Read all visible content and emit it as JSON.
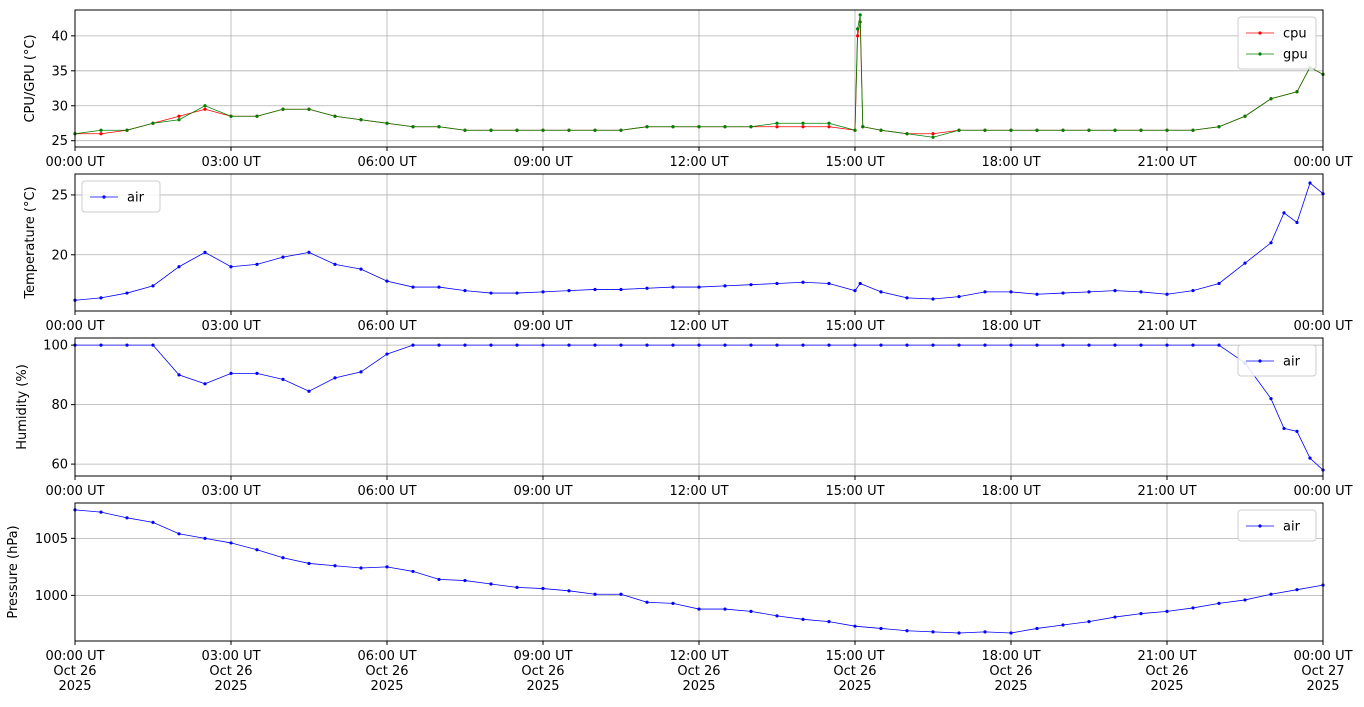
{
  "chart_data": [
    {
      "type": "line",
      "ylabel": "CPU/GPU (°C)",
      "legend": "upper right",
      "grid": true,
      "xlim": [
        "2025-10-26T00:00",
        "2025-10-27T00:00"
      ],
      "ylim": [
        24.1,
        43.7
      ],
      "yticks": [
        25,
        30,
        35,
        40
      ],
      "xticks": [
        {
          "value": "2025-10-26T00:00",
          "label": "00:00 UT"
        },
        {
          "value": "2025-10-26T03:00",
          "label": "03:00 UT"
        },
        {
          "value": "2025-10-26T06:00",
          "label": "06:00 UT"
        },
        {
          "value": "2025-10-26T09:00",
          "label": "09:00 UT"
        },
        {
          "value": "2025-10-26T12:00",
          "label": "12:00 UT"
        },
        {
          "value": "2025-10-26T15:00",
          "label": "15:00 UT"
        },
        {
          "value": "2025-10-26T18:00",
          "label": "18:00 UT"
        },
        {
          "value": "2025-10-26T21:00",
          "label": "21:00 UT"
        },
        {
          "value": "2025-10-27T00:00",
          "label": "00:00 UT"
        }
      ],
      "x": [
        "2025-10-26T00:00",
        "2025-10-26T00:30",
        "2025-10-26T01:00",
        "2025-10-26T01:30",
        "2025-10-26T02:00",
        "2025-10-26T02:30",
        "2025-10-26T03:00",
        "2025-10-26T03:30",
        "2025-10-26T04:00",
        "2025-10-26T04:30",
        "2025-10-26T05:00",
        "2025-10-26T05:30",
        "2025-10-26T06:00",
        "2025-10-26T06:30",
        "2025-10-26T07:00",
        "2025-10-26T07:30",
        "2025-10-26T08:00",
        "2025-10-26T08:30",
        "2025-10-26T09:00",
        "2025-10-26T09:30",
        "2025-10-26T10:00",
        "2025-10-26T10:30",
        "2025-10-26T11:00",
        "2025-10-26T11:30",
        "2025-10-26T12:00",
        "2025-10-26T12:30",
        "2025-10-26T13:00",
        "2025-10-26T13:30",
        "2025-10-26T14:00",
        "2025-10-26T14:30",
        "2025-10-26T15:00",
        "2025-10-26T15:03",
        "2025-10-26T15:06",
        "2025-10-26T15:09",
        "2025-10-26T15:30",
        "2025-10-26T16:00",
        "2025-10-26T16:30",
        "2025-10-26T17:00",
        "2025-10-26T17:30",
        "2025-10-26T18:00",
        "2025-10-26T18:30",
        "2025-10-26T19:00",
        "2025-10-26T19:30",
        "2025-10-26T20:00",
        "2025-10-26T20:30",
        "2025-10-26T21:00",
        "2025-10-26T21:30",
        "2025-10-26T22:00",
        "2025-10-26T22:30",
        "2025-10-26T23:00",
        "2025-10-26T23:30",
        "2025-10-26T23:45",
        "2025-10-27T00:00"
      ],
      "series": [
        {
          "name": "cpu",
          "color": "#ff0000",
          "values": [
            26,
            26,
            26.5,
            27.5,
            28.5,
            29.5,
            28.5,
            28.5,
            29.5,
            29.5,
            28.5,
            28,
            27.5,
            27,
            27,
            26.5,
            26.5,
            26.5,
            26.5,
            26.5,
            26.5,
            26.5,
            27,
            27,
            27,
            27,
            27,
            27,
            27,
            27,
            26.5,
            40,
            42,
            27,
            26.5,
            26,
            26,
            26.5,
            26.5,
            26.5,
            26.5,
            26.5,
            26.5,
            26.5,
            26.5,
            26.5,
            26.5,
            27,
            28.5,
            31,
            32,
            35.5,
            34.5
          ]
        },
        {
          "name": "gpu",
          "color": "#008000",
          "values": [
            26,
            26.5,
            26.5,
            27.5,
            28,
            30,
            28.5,
            28.5,
            29.5,
            29.5,
            28.5,
            28,
            27.5,
            27,
            27,
            26.5,
            26.5,
            26.5,
            26.5,
            26.5,
            26.5,
            26.5,
            27,
            27,
            27,
            27,
            27,
            27.5,
            27.5,
            27.5,
            26.5,
            41,
            43,
            27,
            26.5,
            26,
            25.5,
            26.5,
            26.5,
            26.5,
            26.5,
            26.5,
            26.5,
            26.5,
            26.5,
            26.5,
            26.5,
            27,
            28.5,
            31,
            32,
            35.5,
            34.5
          ]
        }
      ]
    },
    {
      "type": "line",
      "ylabel": "Temperature (°C)",
      "legend": "upper left",
      "grid": true,
      "xlim": [
        "2025-10-26T00:00",
        "2025-10-27T00:00"
      ],
      "ylim": [
        15.3,
        26.75
      ],
      "yticks": [
        20,
        25
      ],
      "xticks": [
        {
          "value": "2025-10-26T00:00",
          "label": "00:00 UT"
        },
        {
          "value": "2025-10-26T03:00",
          "label": "03:00 UT"
        },
        {
          "value": "2025-10-26T06:00",
          "label": "06:00 UT"
        },
        {
          "value": "2025-10-26T09:00",
          "label": "09:00 UT"
        },
        {
          "value": "2025-10-26T12:00",
          "label": "12:00 UT"
        },
        {
          "value": "2025-10-26T15:00",
          "label": "15:00 UT"
        },
        {
          "value": "2025-10-26T18:00",
          "label": "18:00 UT"
        },
        {
          "value": "2025-10-26T21:00",
          "label": "21:00 UT"
        },
        {
          "value": "2025-10-27T00:00",
          "label": "00:00 UT"
        }
      ],
      "x": [
        "2025-10-26T00:00",
        "2025-10-26T00:30",
        "2025-10-26T01:00",
        "2025-10-26T01:30",
        "2025-10-26T02:00",
        "2025-10-26T02:30",
        "2025-10-26T03:00",
        "2025-10-26T03:30",
        "2025-10-26T04:00",
        "2025-10-26T04:30",
        "2025-10-26T05:00",
        "2025-10-26T05:30",
        "2025-10-26T06:00",
        "2025-10-26T06:30",
        "2025-10-26T07:00",
        "2025-10-26T07:30",
        "2025-10-26T08:00",
        "2025-10-26T08:30",
        "2025-10-26T09:00",
        "2025-10-26T09:30",
        "2025-10-26T10:00",
        "2025-10-26T10:30",
        "2025-10-26T11:00",
        "2025-10-26T11:30",
        "2025-10-26T12:00",
        "2025-10-26T12:30",
        "2025-10-26T13:00",
        "2025-10-26T13:30",
        "2025-10-26T14:00",
        "2025-10-26T14:30",
        "2025-10-26T15:00",
        "2025-10-26T15:06",
        "2025-10-26T15:30",
        "2025-10-26T16:00",
        "2025-10-26T16:30",
        "2025-10-26T17:00",
        "2025-10-26T17:30",
        "2025-10-26T18:00",
        "2025-10-26T18:30",
        "2025-10-26T19:00",
        "2025-10-26T19:30",
        "2025-10-26T20:00",
        "2025-10-26T20:30",
        "2025-10-26T21:00",
        "2025-10-26T21:30",
        "2025-10-26T22:00",
        "2025-10-26T22:30",
        "2025-10-26T23:00",
        "2025-10-26T23:15",
        "2025-10-26T23:30",
        "2025-10-26T23:45",
        "2025-10-27T00:00"
      ],
      "series": [
        {
          "name": "air",
          "color": "#0000ff",
          "values": [
            16.2,
            16.4,
            16.8,
            17.4,
            19,
            20.2,
            19,
            19.2,
            19.8,
            20.2,
            19.2,
            18.8,
            17.8,
            17.3,
            17.3,
            17.0,
            16.8,
            16.8,
            16.9,
            17.0,
            17.1,
            17.1,
            17.2,
            17.3,
            17.3,
            17.4,
            17.5,
            17.6,
            17.7,
            17.6,
            17.0,
            17.6,
            16.9,
            16.4,
            16.3,
            16.5,
            16.9,
            16.9,
            16.7,
            16.8,
            16.9,
            17.0,
            16.9,
            16.7,
            17.0,
            17.6,
            19.3,
            21.0,
            23.5,
            22.7,
            26,
            25.1
          ]
        }
      ]
    },
    {
      "type": "line",
      "ylabel": "Humidity (%)",
      "legend": "upper right",
      "grid": true,
      "xlim": [
        "2025-10-26T00:00",
        "2025-10-27T00:00"
      ],
      "ylim": [
        56,
        102.4
      ],
      "yticks": [
        60,
        80,
        100
      ],
      "xticks": [
        {
          "value": "2025-10-26T00:00",
          "label": "00:00 UT"
        },
        {
          "value": "2025-10-26T03:00",
          "label": "03:00 UT"
        },
        {
          "value": "2025-10-26T06:00",
          "label": "06:00 UT"
        },
        {
          "value": "2025-10-26T09:00",
          "label": "09:00 UT"
        },
        {
          "value": "2025-10-26T12:00",
          "label": "12:00 UT"
        },
        {
          "value": "2025-10-26T15:00",
          "label": "15:00 UT"
        },
        {
          "value": "2025-10-26T18:00",
          "label": "18:00 UT"
        },
        {
          "value": "2025-10-26T21:00",
          "label": "21:00 UT"
        },
        {
          "value": "2025-10-27T00:00",
          "label": "00:00 UT"
        }
      ],
      "x": [
        "2025-10-26T00:00",
        "2025-10-26T00:30",
        "2025-10-26T01:00",
        "2025-10-26T01:30",
        "2025-10-26T02:00",
        "2025-10-26T02:30",
        "2025-10-26T03:00",
        "2025-10-26T03:30",
        "2025-10-26T04:00",
        "2025-10-26T04:30",
        "2025-10-26T05:00",
        "2025-10-26T05:30",
        "2025-10-26T06:00",
        "2025-10-26T06:30",
        "2025-10-26T07:00",
        "2025-10-26T07:30",
        "2025-10-26T08:00",
        "2025-10-26T08:30",
        "2025-10-26T09:00",
        "2025-10-26T09:30",
        "2025-10-26T10:00",
        "2025-10-26T10:30",
        "2025-10-26T11:00",
        "2025-10-26T11:30",
        "2025-10-26T12:00",
        "2025-10-26T12:30",
        "2025-10-26T13:00",
        "2025-10-26T13:30",
        "2025-10-26T14:00",
        "2025-10-26T14:30",
        "2025-10-26T15:00",
        "2025-10-26T15:30",
        "2025-10-26T16:00",
        "2025-10-26T16:30",
        "2025-10-26T17:00",
        "2025-10-26T17:30",
        "2025-10-26T18:00",
        "2025-10-26T18:30",
        "2025-10-26T19:00",
        "2025-10-26T19:30",
        "2025-10-26T20:00",
        "2025-10-26T20:30",
        "2025-10-26T21:00",
        "2025-10-26T21:30",
        "2025-10-26T22:00",
        "2025-10-26T22:30",
        "2025-10-26T23:00",
        "2025-10-26T23:15",
        "2025-10-26T23:30",
        "2025-10-26T23:45",
        "2025-10-27T00:00"
      ],
      "series": [
        {
          "name": "air",
          "color": "#0000ff",
          "values": [
            100,
            100,
            100,
            100,
            90,
            87,
            90.5,
            90.5,
            88.5,
            84.5,
            89,
            91,
            97,
            100,
            100,
            100,
            100,
            100,
            100,
            100,
            100,
            100,
            100,
            100,
            100,
            100,
            100,
            100,
            100,
            100,
            100,
            100,
            100,
            100,
            100,
            100,
            100,
            100,
            100,
            100,
            100,
            100,
            100,
            100,
            100,
            94,
            82,
            72,
            71,
            62,
            58
          ]
        }
      ]
    },
    {
      "type": "line",
      "ylabel": "Pressure (hPa)",
      "legend": "upper right",
      "grid": true,
      "xlim": [
        "2025-10-26T00:00",
        "2025-10-27T00:00"
      ],
      "ylim": [
        996,
        1008.1
      ],
      "yticks": [
        1000,
        1005
      ],
      "xticks": [
        {
          "value": "2025-10-26T00:00",
          "label": [
            "00:00 UT",
            "Oct 26",
            "2025"
          ]
        },
        {
          "value": "2025-10-26T03:00",
          "label": [
            "03:00 UT",
            "Oct 26",
            "2025"
          ]
        },
        {
          "value": "2025-10-26T06:00",
          "label": [
            "06:00 UT",
            "Oct 26",
            "2025"
          ]
        },
        {
          "value": "2025-10-26T09:00",
          "label": [
            "09:00 UT",
            "Oct 26",
            "2025"
          ]
        },
        {
          "value": "2025-10-26T12:00",
          "label": [
            "12:00 UT",
            "Oct 26",
            "2025"
          ]
        },
        {
          "value": "2025-10-26T15:00",
          "label": [
            "15:00 UT",
            "Oct 26",
            "2025"
          ]
        },
        {
          "value": "2025-10-26T18:00",
          "label": [
            "18:00 UT",
            "Oct 26",
            "2025"
          ]
        },
        {
          "value": "2025-10-26T21:00",
          "label": [
            "21:00 UT",
            "Oct 26",
            "2025"
          ]
        },
        {
          "value": "2025-10-27T00:00",
          "label": [
            "00:00 UT",
            "Oct 27",
            "2025"
          ]
        }
      ],
      "x": [
        "2025-10-26T00:00",
        "2025-10-26T00:30",
        "2025-10-26T01:00",
        "2025-10-26T01:30",
        "2025-10-26T02:00",
        "2025-10-26T02:30",
        "2025-10-26T03:00",
        "2025-10-26T03:30",
        "2025-10-26T04:00",
        "2025-10-26T04:30",
        "2025-10-26T05:00",
        "2025-10-26T05:30",
        "2025-10-26T06:00",
        "2025-10-26T06:30",
        "2025-10-26T07:00",
        "2025-10-26T07:30",
        "2025-10-26T08:00",
        "2025-10-26T08:30",
        "2025-10-26T09:00",
        "2025-10-26T09:30",
        "2025-10-26T10:00",
        "2025-10-26T10:30",
        "2025-10-26T11:00",
        "2025-10-26T11:30",
        "2025-10-26T12:00",
        "2025-10-26T12:30",
        "2025-10-26T13:00",
        "2025-10-26T13:30",
        "2025-10-26T14:00",
        "2025-10-26T14:30",
        "2025-10-26T15:00",
        "2025-10-26T15:30",
        "2025-10-26T16:00",
        "2025-10-26T16:30",
        "2025-10-26T17:00",
        "2025-10-26T17:30",
        "2025-10-26T18:00",
        "2025-10-26T18:30",
        "2025-10-26T19:00",
        "2025-10-26T19:30",
        "2025-10-26T20:00",
        "2025-10-26T20:30",
        "2025-10-26T21:00",
        "2025-10-26T21:30",
        "2025-10-26T22:00",
        "2025-10-26T22:30",
        "2025-10-26T23:00",
        "2025-10-26T23:30",
        "2025-10-27T00:00"
      ],
      "series": [
        {
          "name": "air",
          "color": "#0000ff",
          "values": [
            1007.5,
            1007.3,
            1006.8,
            1006.4,
            1005.4,
            1005.0,
            1004.6,
            1004.0,
            1003.3,
            1002.8,
            1002.6,
            1002.4,
            1002.5,
            1002.1,
            1001.4,
            1001.3,
            1001.0,
            1000.7,
            1000.6,
            1000.4,
            1000.1,
            1000.1,
            999.4,
            999.3,
            998.8,
            998.8,
            998.6,
            998.2,
            997.9,
            997.7,
            997.3,
            997.1,
            996.9,
            996.8,
            996.7,
            996.8,
            996.7,
            997.1,
            997.4,
            997.7,
            998.1,
            998.4,
            998.6,
            998.9,
            999.3,
            999.6,
            1000.1,
            1000.5,
            1000.9
          ]
        }
      ]
    }
  ]
}
